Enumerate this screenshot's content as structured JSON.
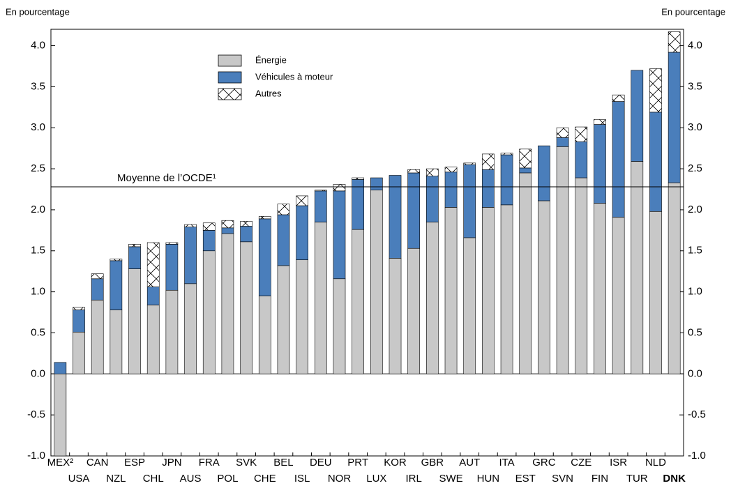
{
  "chart_data": {
    "type": "stacked-bar",
    "y_label_left": "En pourcentage",
    "y_label_right": "En pourcentage",
    "categories": [
      "MEX²",
      "USA",
      "CAN",
      "NZL",
      "ESP",
      "CHL",
      "JPN",
      "AUS",
      "FRA",
      "POL",
      "SVK",
      "CHE",
      "BEL",
      "ISL",
      "DEU",
      "NOR",
      "PRT",
      "LUX",
      "KOR",
      "IRL",
      "GBR",
      "SWE",
      "AUT",
      "HUN",
      "ITA",
      "EST",
      "GRC",
      "SVN",
      "CZE",
      "FIN",
      "ISR",
      "TUR",
      "NLD",
      "DNK"
    ],
    "series": [
      {
        "name": "Énergie",
        "color": "#c8c8c8",
        "values": [
          -1.0,
          0.51,
          0.9,
          0.78,
          1.28,
          0.84,
          1.02,
          1.1,
          1.5,
          1.71,
          1.61,
          0.95,
          1.32,
          1.39,
          1.85,
          1.16,
          1.76,
          2.24,
          1.41,
          1.53,
          1.85,
          2.03,
          1.66,
          2.03,
          2.06,
          2.45,
          2.11,
          2.77,
          2.39,
          2.08,
          1.91,
          2.59,
          1.98,
          2.33
        ]
      },
      {
        "name": "Véhicules à moteur",
        "color": "#4a7ebb",
        "values": [
          0.14,
          0.27,
          0.26,
          0.6,
          0.27,
          0.22,
          0.56,
          0.69,
          0.25,
          0.07,
          0.19,
          0.94,
          0.62,
          0.66,
          0.38,
          1.07,
          0.61,
          0.15,
          1.01,
          0.92,
          0.56,
          0.43,
          0.89,
          0.46,
          0.61,
          0.06,
          0.67,
          0.11,
          0.44,
          0.96,
          1.41,
          1.11,
          1.21,
          1.59
        ]
      },
      {
        "name": "Autres",
        "color": "#ffffff",
        "hatch": true,
        "values": [
          0,
          0.03,
          0.06,
          0.02,
          0.03,
          0.54,
          0.02,
          0.03,
          0.09,
          0.09,
          0.06,
          0.03,
          0.13,
          0.12,
          0.01,
          0.08,
          0.02,
          0,
          0,
          0.04,
          0.09,
          0.06,
          0.02,
          0.19,
          0.02,
          0.23,
          0,
          0.12,
          0.18,
          0.06,
          0.08,
          0,
          0.53,
          0.25
        ]
      }
    ],
    "reference_line": {
      "value": 2.28,
      "label": "Moyenne de l’OCDE¹"
    },
    "ylim": [
      -1,
      4.2
    ],
    "yticks": [
      {
        "value": -1,
        "label": "-1.0"
      },
      {
        "value": -0.5,
        "label": "-0.5"
      },
      {
        "value": 0,
        "label": "0.0"
      },
      {
        "value": 0.5,
        "label": "0.5"
      },
      {
        "value": 1,
        "label": "1.0"
      },
      {
        "value": 1.5,
        "label": "1.5"
      },
      {
        "value": 2,
        "label": "2.0"
      },
      {
        "value": 2.5,
        "label": "2.5"
      },
      {
        "value": 3,
        "label": "3.0"
      },
      {
        "value": 3.5,
        "label": "3.5"
      },
      {
        "value": 4,
        "label": "4.0"
      }
    ],
    "grid": false
  }
}
